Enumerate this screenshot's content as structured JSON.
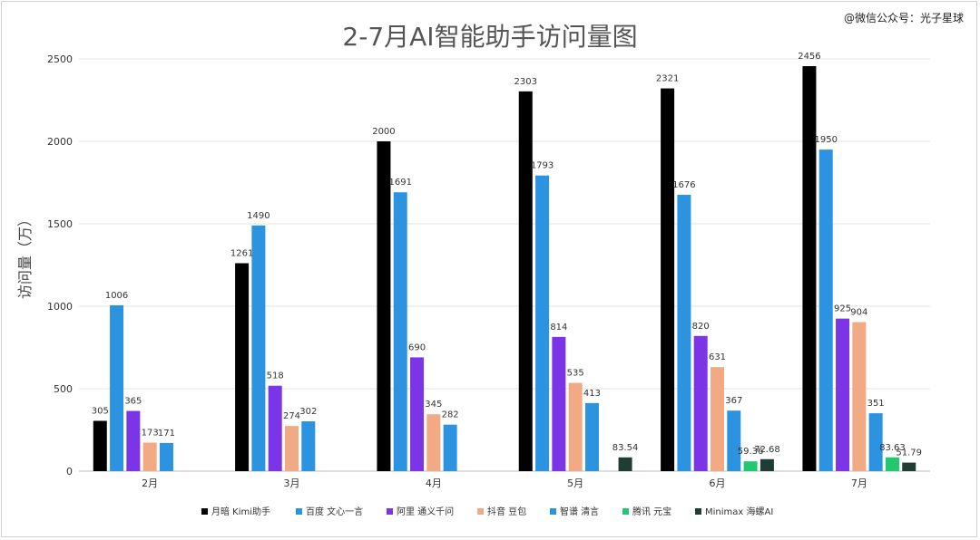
{
  "watermark": "@微信公众号：光子星球",
  "chart_data": {
    "type": "bar",
    "title": "2-7月AI智能助手访问量图",
    "xlabel": "",
    "ylabel": "访问量（万）",
    "ylim": [
      0,
      2500
    ],
    "yticks": [
      0,
      500,
      1000,
      1500,
      2000,
      2500
    ],
    "grid": true,
    "legend_position": "bottom",
    "categories": [
      "2月",
      "3月",
      "4月",
      "5月",
      "6月",
      "7月"
    ],
    "series": [
      {
        "name": "月暗 Kimi助手",
        "color": "#000000",
        "values": [
          305,
          1261,
          2000,
          2303,
          2321,
          2456
        ]
      },
      {
        "name": "百度 文心一言",
        "color": "#2b93e0",
        "values": [
          1006,
          1490,
          1691,
          1793,
          1676,
          1950
        ]
      },
      {
        "name": "阿里 通义千问",
        "color": "#7b34e6",
        "values": [
          365,
          518,
          690,
          814,
          820,
          925
        ]
      },
      {
        "name": "抖音 豆包",
        "color": "#f2aa84",
        "values": [
          173,
          274,
          345,
          535,
          631,
          904
        ]
      },
      {
        "name": "智谱 清言",
        "color": "#2b93e0",
        "values": [
          171,
          302,
          282,
          413,
          367,
          351
        ]
      },
      {
        "name": "腾讯 元宝",
        "color": "#22c770",
        "values": [
          null,
          null,
          null,
          null,
          59.36,
          83.63
        ]
      },
      {
        "name": "Minimax 海螺AI",
        "color": "#1f3d32",
        "values": [
          null,
          null,
          null,
          83.54,
          72.68,
          51.79
        ]
      }
    ]
  }
}
